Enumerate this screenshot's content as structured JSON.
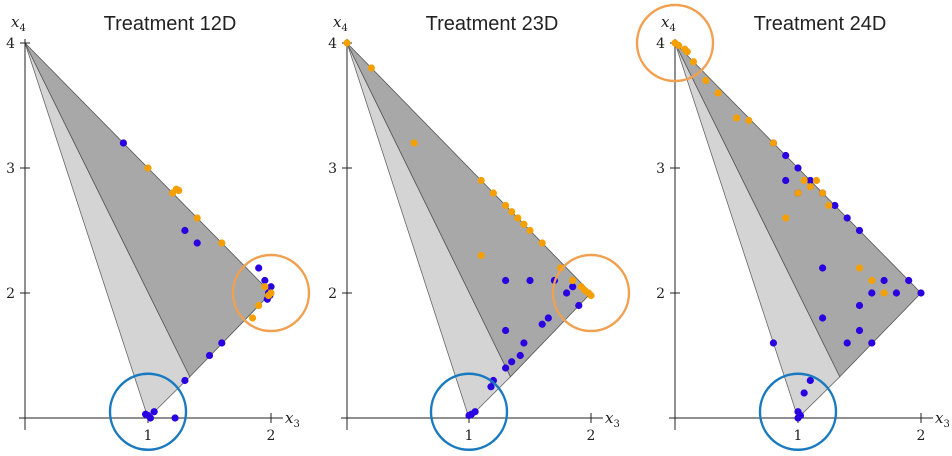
{
  "chart_data": [
    {
      "type": "scatter",
      "title": "Treatment 12D",
      "xlabel": "x",
      "xlabel_sub": "3",
      "ylabel": "x",
      "ylabel_sub": "4",
      "xlim": [
        0,
        2
      ],
      "ylim": [
        1,
        4
      ],
      "xticks": [
        "1",
        "2"
      ],
      "yticks": [
        "2",
        "3",
        "4"
      ],
      "grid": false,
      "regions": {
        "light_triangle": [
          [
            0,
            4
          ],
          [
            1,
            1
          ],
          [
            1.34,
            1.33
          ]
        ],
        "dark_triangle": [
          [
            0,
            4
          ],
          [
            1.34,
            1.33
          ],
          [
            2,
            2
          ]
        ]
      },
      "colors": {
        "orange": "#f5a000",
        "blue": "#2a00e0",
        "circle_orange": "#f0a050",
        "circle_blue": "#1a7ac0",
        "light_region": "#d4d4d4",
        "dark_region": "#a8a8a8"
      },
      "circles": [
        {
          "color": "blue",
          "center": [
            1,
            1.05
          ]
        },
        {
          "color": "orange",
          "center": [
            2,
            2.0
          ]
        }
      ],
      "series": [
        {
          "color": "blue",
          "x": [
            0.8,
            1.3,
            1.4,
            1.9,
            1.95,
            1.98,
            2.0,
            1.97,
            1.99,
            1.6,
            1.5,
            1.3,
            1.22,
            1.0,
            1.05,
            0.98,
            1.02
          ],
          "y": [
            3.2,
            2.5,
            2.4,
            2.2,
            2.1,
            2.0,
            2.05,
            1.95,
            1.98,
            1.6,
            1.5,
            1.3,
            1.0,
            1.02,
            1.05,
            1.03,
            1.0
          ]
        },
        {
          "color": "orange",
          "x": [
            1.0,
            1.2,
            1.23,
            1.25,
            1.4,
            1.6,
            1.95,
            1.98,
            2.0,
            1.9,
            1.85
          ],
          "y": [
            3.0,
            2.8,
            2.83,
            2.82,
            2.6,
            2.4,
            2.05,
            1.98,
            2.0,
            1.9,
            1.8
          ]
        }
      ]
    },
    {
      "type": "scatter",
      "title": "Treatment 23D",
      "xlabel": "x",
      "xlabel_sub": "3",
      "ylabel": "x",
      "ylabel_sub": "4",
      "xlim": [
        0,
        2
      ],
      "ylim": [
        1,
        4
      ],
      "xticks": [
        "1",
        "2"
      ],
      "yticks": [
        "2",
        "3",
        "4"
      ],
      "grid": false,
      "regions": {
        "light_triangle": [
          [
            0,
            4
          ],
          [
            1,
            1
          ],
          [
            1.34,
            1.33
          ]
        ],
        "dark_triangle": [
          [
            0,
            4
          ],
          [
            1.34,
            1.33
          ],
          [
            2,
            2
          ]
        ]
      },
      "colors": {
        "orange": "#f5a000",
        "blue": "#2a00e0",
        "circle_orange": "#f0a050",
        "circle_blue": "#1a7ac0",
        "light_region": "#d4d4d4",
        "dark_region": "#a8a8a8"
      },
      "circles": [
        {
          "color": "blue",
          "center": [
            1,
            1.05
          ]
        },
        {
          "color": "orange",
          "center": [
            2,
            2.0
          ]
        }
      ],
      "series": [
        {
          "color": "blue",
          "x": [
            1.3,
            1.5,
            1.7,
            1.8,
            1.85,
            1.9,
            1.3,
            1.65,
            1.6,
            1.45,
            1.42,
            1.35,
            1.3,
            1.2,
            1.18,
            1.05,
            1.0,
            1.02
          ],
          "y": [
            2.1,
            2.1,
            2.1,
            2.0,
            2.05,
            1.9,
            1.7,
            1.8,
            1.75,
            1.6,
            1.5,
            1.45,
            1.4,
            1.3,
            1.25,
            1.05,
            1.02,
            1.03
          ]
        },
        {
          "color": "orange",
          "x": [
            0.0,
            0.2,
            0.55,
            1.1,
            1.2,
            1.3,
            1.35,
            1.4,
            1.45,
            1.5,
            1.6,
            1.75,
            1.85,
            1.92,
            1.95,
            1.98,
            2.0,
            1.1
          ],
          "y": [
            4.0,
            3.8,
            3.2,
            2.9,
            2.8,
            2.7,
            2.65,
            2.6,
            2.55,
            2.5,
            2.4,
            2.2,
            2.1,
            2.05,
            2.02,
            2.0,
            1.98,
            2.3
          ]
        }
      ]
    },
    {
      "type": "scatter",
      "title": "Treatment 24D",
      "xlabel": "x",
      "xlabel_sub": "3",
      "ylabel": "x",
      "ylabel_sub": "4",
      "xlim": [
        0,
        2
      ],
      "ylim": [
        1,
        4
      ],
      "xticks": [
        "1",
        "2"
      ],
      "yticks": [
        "2",
        "3",
        "4"
      ],
      "grid": false,
      "regions": {
        "light_triangle": [
          [
            0,
            4
          ],
          [
            1,
            1
          ],
          [
            1.34,
            1.33
          ]
        ],
        "dark_triangle": [
          [
            0,
            4
          ],
          [
            1.34,
            1.33
          ],
          [
            2,
            2
          ]
        ]
      },
      "colors": {
        "orange": "#f5a000",
        "blue": "#2a00e0",
        "circle_orange": "#f0a050",
        "circle_blue": "#1a7ac0",
        "light_region": "#d4d4d4",
        "dark_region": "#a8a8a8"
      },
      "circles": [
        {
          "color": "orange",
          "center": [
            0,
            4.0
          ]
        },
        {
          "color": "blue",
          "center": [
            1,
            1.05
          ]
        }
      ],
      "series": [
        {
          "color": "blue",
          "x": [
            0.8,
            0.9,
            1.0,
            1.1,
            1.2,
            1.3,
            1.4,
            1.5,
            0.9,
            1.0,
            1.2,
            1.5,
            1.6,
            1.7,
            1.8,
            1.9,
            2.0,
            1.6,
            1.5,
            1.4,
            1.2,
            0.8,
            1.1,
            1.0,
            1.02,
            1.0,
            1.05
          ],
          "y": [
            3.2,
            3.1,
            3.0,
            2.9,
            2.8,
            2.7,
            2.6,
            2.5,
            2.9,
            2.8,
            2.2,
            1.9,
            2.0,
            2.1,
            2.0,
            2.1,
            2.0,
            1.6,
            1.7,
            1.6,
            1.8,
            1.6,
            1.3,
            1.05,
            1.02,
            1.0,
            1.2
          ]
        },
        {
          "color": "orange",
          "x": [
            0.0,
            0.03,
            0.08,
            0.1,
            0.15,
            0.25,
            0.35,
            0.5,
            0.6,
            0.8,
            1.0,
            1.05,
            1.1,
            1.15,
            1.2,
            1.25,
            1.5,
            1.6,
            1.7,
            0.9
          ],
          "y": [
            4.0,
            3.98,
            3.95,
            3.93,
            3.85,
            3.7,
            3.6,
            3.4,
            3.38,
            3.2,
            2.8,
            2.9,
            2.85,
            2.9,
            2.8,
            2.7,
            2.2,
            2.1,
            2.0,
            2.6
          ]
        }
      ]
    }
  ]
}
